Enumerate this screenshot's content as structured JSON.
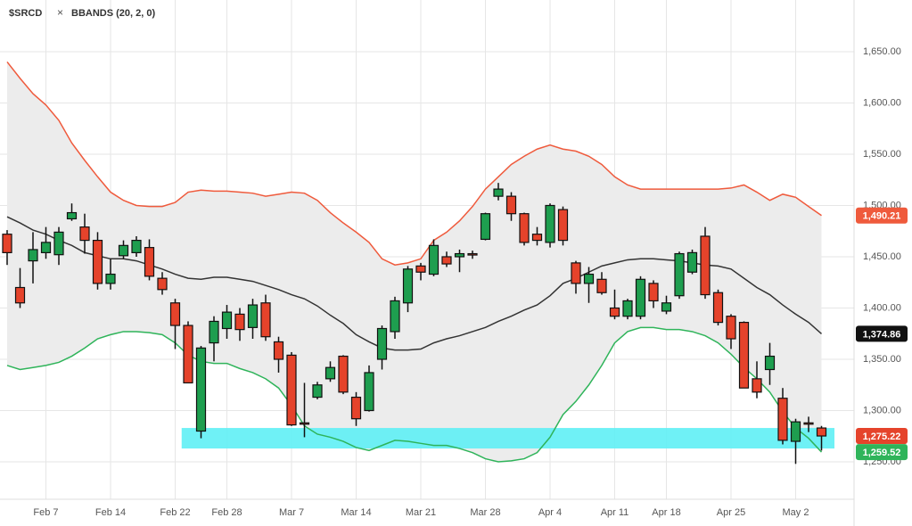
{
  "chart_data": {
    "type": "candlestick",
    "symbol": "$SRCD",
    "indicator_close": "×",
    "indicator": "BBANDS (20, 2, 0)",
    "categories": [
      null,
      null,
      null,
      "Feb 7",
      null,
      null,
      null,
      null,
      "Feb 14",
      null,
      null,
      null,
      null,
      "Feb 22",
      null,
      null,
      null,
      "Feb 28",
      null,
      null,
      null,
      null,
      "Mar 7",
      null,
      null,
      null,
      null,
      "Mar 14",
      null,
      null,
      null,
      null,
      "Mar 21",
      null,
      null,
      null,
      null,
      "Mar 28",
      null,
      null,
      null,
      null,
      "Apr 4",
      null,
      null,
      null,
      null,
      "Apr 11",
      null,
      null,
      null,
      "Apr 18",
      null,
      null,
      null,
      null,
      "Apr 25",
      null,
      null,
      null,
      null,
      "May 2",
      null,
      null
    ],
    "open": [
      1472,
      1420,
      1446,
      1454,
      1452,
      1487,
      1479,
      1466,
      1424,
      1451,
      1454,
      1459,
      1429,
      1405,
      1383,
      1280,
      1366,
      1380,
      1394,
      1381,
      1405,
      1367,
      1354,
      1288,
      1313,
      1331,
      1353,
      1313,
      1300,
      1350,
      1377,
      1405,
      1441,
      1433,
      1450,
      1450,
      1453,
      1467,
      1509,
      1509,
      1492,
      1472,
      1464,
      1496,
      1444,
      1424,
      1428,
      1400,
      1392,
      1392,
      1424,
      1397,
      1412,
      1435,
      1470,
      1415,
      1392,
      1386,
      1331,
      1340,
      1312,
      1270,
      1288,
      1283
    ],
    "high": [
      1476,
      1439,
      1474,
      1479,
      1479,
      1502,
      1492,
      1474,
      1448,
      1466,
      1470,
      1467,
      1435,
      1409,
      1387,
      1363,
      1392,
      1403,
      1400,
      1409,
      1413,
      1372,
      1357,
      1327,
      1328,
      1348,
      1354,
      1318,
      1344,
      1383,
      1411,
      1441,
      1444,
      1467,
      1455,
      1457,
      1456,
      1493,
      1522,
      1513,
      1493,
      1479,
      1502,
      1499,
      1446,
      1440,
      1435,
      1418,
      1409,
      1431,
      1427,
      1412,
      1455,
      1457,
      1479,
      1418,
      1394,
      1387,
      1348,
      1366,
      1322,
      1292,
      1294,
      1285
    ],
    "low": [
      1442,
      1400,
      1424,
      1448,
      1442,
      1485,
      1453,
      1418,
      1418,
      1448,
      1450,
      1427,
      1413,
      1360,
      1327,
      1273,
      1348,
      1370,
      1368,
      1370,
      1368,
      1337,
      1285,
      1274,
      1311,
      1328,
      1316,
      1285,
      1299,
      1340,
      1370,
      1396,
      1427,
      1431,
      1440,
      1435,
      1448,
      1466,
      1505,
      1485,
      1461,
      1461,
      1459,
      1461,
      1414,
      1405,
      1413,
      1389,
      1389,
      1389,
      1400,
      1394,
      1409,
      1433,
      1409,
      1383,
      1360,
      1322,
      1312,
      1325,
      1267,
      1248,
      1279,
      1261
    ],
    "close": [
      1454,
      1405,
      1457,
      1464,
      1474,
      1493,
      1466,
      1424,
      1433,
      1461,
      1466,
      1431,
      1418,
      1383,
      1327,
      1361,
      1387,
      1396,
      1379,
      1403,
      1372,
      1350,
      1286,
      1287,
      1325,
      1342,
      1318,
      1292,
      1337,
      1380,
      1407,
      1438,
      1435,
      1461,
      1443,
      1453,
      1452,
      1492,
      1516,
      1492,
      1464,
      1466,
      1500,
      1466,
      1424,
      1433,
      1415,
      1392,
      1407,
      1428,
      1407,
      1405,
      1453,
      1454,
      1413,
      1386,
      1370,
      1322,
      1318,
      1353,
      1271,
      1289,
      1287,
      1275.22
    ],
    "up_color": "#1e9e4f",
    "down_color": "#e5432b",
    "last_price": {
      "value": 1275.22,
      "label": "1,275.22"
    },
    "last_price_color": "#e5432b",
    "bands": [
      {
        "color": "#ef5a3c",
        "last": {
          "value": 1490.21,
          "label": "1,490.21"
        },
        "values": [
          1640,
          1624,
          1609,
          1598,
          1583,
          1561,
          1544,
          1528,
          1513,
          1505,
          1500,
          1499,
          1499,
          1503,
          1513,
          1515,
          1514,
          1514,
          1513,
          1512,
          1509,
          1511,
          1513,
          1512,
          1505,
          1493,
          1483,
          1474,
          1464,
          1448,
          1442,
          1444,
          1448,
          1466,
          1474,
          1485,
          1499,
          1516,
          1528,
          1540,
          1548,
          1555,
          1559,
          1555,
          1553,
          1548,
          1540,
          1528,
          1520,
          1516,
          1516,
          1516,
          1516,
          1516,
          1516,
          1516,
          1517,
          1520,
          1513,
          1505,
          1511,
          1508,
          1499,
          1490.21
        ]
      },
      {
        "color": "#333333",
        "last": {
          "value": 1374.86,
          "label": "1,374.86"
        },
        "values": [
          1489,
          1483,
          1476,
          1472,
          1466,
          1461,
          1454,
          1451,
          1448,
          1448,
          1446,
          1442,
          1438,
          1433,
          1429,
          1428,
          1430,
          1430,
          1428,
          1426,
          1422,
          1418,
          1413,
          1409,
          1402,
          1393,
          1385,
          1374,
          1367,
          1361,
          1359,
          1359,
          1360,
          1366,
          1370,
          1373,
          1377,
          1381,
          1387,
          1392,
          1398,
          1403,
          1412,
          1424,
          1429,
          1435,
          1441,
          1444,
          1447,
          1448,
          1448,
          1447,
          1446,
          1444,
          1442,
          1441,
          1438,
          1429,
          1420,
          1413,
          1403,
          1394,
          1386,
          1374.86
        ]
      },
      {
        "color": "#2fb45a",
        "last": {
          "value": 1259.52,
          "label": "1,259.52"
        },
        "values": [
          1344,
          1340,
          1342,
          1344,
          1347,
          1353,
          1361,
          1370,
          1374,
          1377,
          1377,
          1376,
          1374,
          1366,
          1354,
          1348,
          1346,
          1346,
          1341,
          1337,
          1331,
          1322,
          1305,
          1285,
          1277,
          1274,
          1270,
          1264,
          1261,
          1266,
          1271,
          1270,
          1268,
          1266,
          1266,
          1263,
          1259,
          1253,
          1250,
          1251,
          1253,
          1259,
          1274,
          1296,
          1309,
          1325,
          1344,
          1366,
          1377,
          1381,
          1381,
          1379,
          1379,
          1377,
          1373,
          1366,
          1355,
          1342,
          1331,
          1318,
          1299,
          1283,
          1273,
          1259.52
        ]
      }
    ],
    "band_fill": "#ececec",
    "highlight_zone": [
      1263,
      1283
    ],
    "highlight_color": "#5ff0f5",
    "ylim": [
      1213.5,
      1700.4
    ],
    "yticks": [
      {
        "value": 1250,
        "label": "1,250.00"
      },
      {
        "value": 1300,
        "label": "1,300.00"
      },
      {
        "value": 1350,
        "label": "1,350.00"
      },
      {
        "value": 1400,
        "label": "1,400.00"
      },
      {
        "value": 1450,
        "label": "1,450.00"
      },
      {
        "value": 1500,
        "label": "1,500.00"
      },
      {
        "value": 1550,
        "label": "1,550.00"
      },
      {
        "value": 1600,
        "label": "1,600.00"
      },
      {
        "value": 1650,
        "label": "1,650.00"
      }
    ],
    "grid": true
  }
}
